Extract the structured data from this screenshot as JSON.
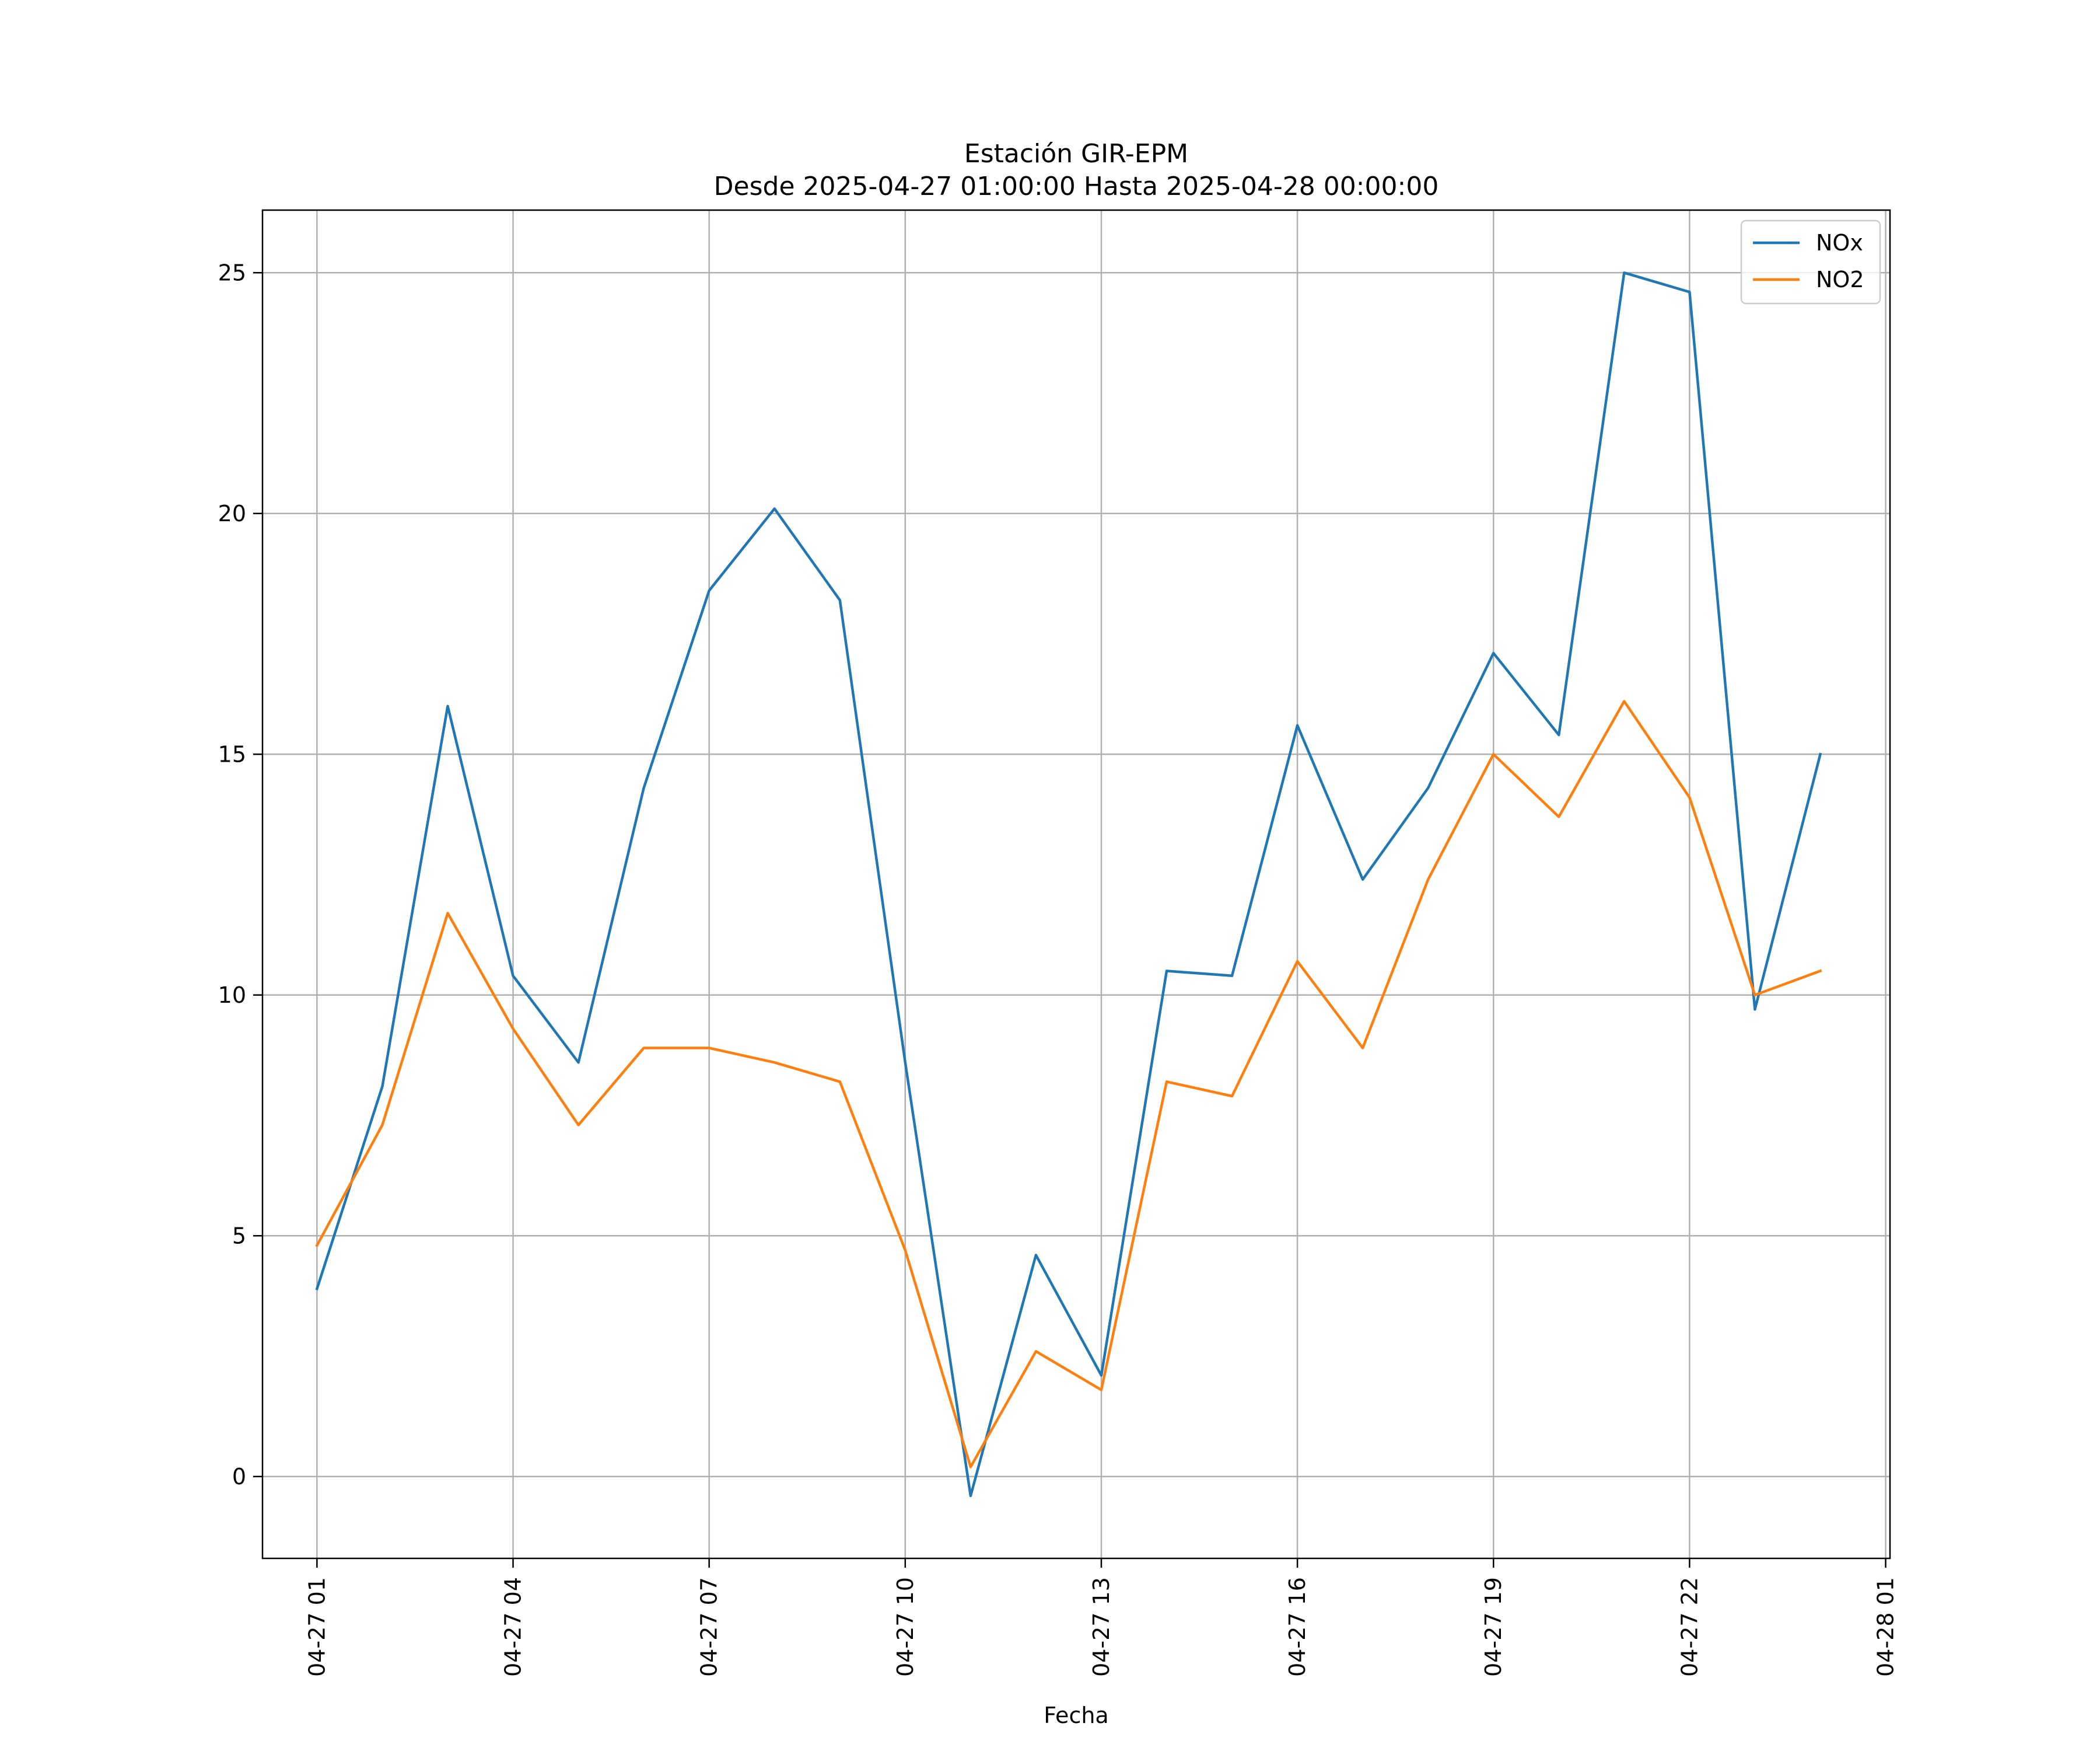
{
  "chart_data": {
    "type": "line",
    "title": "Estación GIR-EPM",
    "subtitle": "Desde 2025-04-27 01:00:00 Hasta 2025-04-28 00:00:00",
    "xlabel": "Fecha",
    "ylabel": "",
    "x": [
      "2025-04-27 01:00",
      "2025-04-27 02:00",
      "2025-04-27 03:00",
      "2025-04-27 04:00",
      "2025-04-27 05:00",
      "2025-04-27 06:00",
      "2025-04-27 07:00",
      "2025-04-27 08:00",
      "2025-04-27 09:00",
      "2025-04-27 10:00",
      "2025-04-27 11:00",
      "2025-04-27 12:00",
      "2025-04-27 13:00",
      "2025-04-27 14:00",
      "2025-04-27 15:00",
      "2025-04-27 16:00",
      "2025-04-27 17:00",
      "2025-04-27 18:00",
      "2025-04-27 19:00",
      "2025-04-27 20:00",
      "2025-04-27 21:00",
      "2025-04-27 22:00",
      "2025-04-27 23:00",
      "2025-04-28 00:00"
    ],
    "series": [
      {
        "name": "NOx",
        "color": "#1f77b4",
        "values": [
          3.9,
          8.1,
          16.0,
          10.4,
          8.6,
          14.3,
          18.4,
          20.1,
          18.2,
          8.6,
          -0.4,
          4.6,
          2.1,
          10.5,
          10.4,
          15.6,
          12.4,
          14.3,
          17.1,
          15.4,
          25.0,
          24.6,
          9.7,
          15.0
        ]
      },
      {
        "name": "NO2",
        "color": "#ff7f0e",
        "values": [
          4.8,
          7.3,
          11.7,
          9.3,
          7.3,
          8.9,
          8.9,
          8.6,
          8.2,
          4.7,
          0.2,
          2.6,
          1.8,
          8.2,
          7.9,
          10.7,
          8.9,
          12.4,
          15.0,
          13.7,
          16.1,
          14.1,
          10.0,
          10.5
        ]
      }
    ],
    "xticks": [
      "04-27 01",
      "04-27 04",
      "04-27 07",
      "04-27 10",
      "04-27 13",
      "04-27 16",
      "04-27 19",
      "04-27 22",
      "04-28 01"
    ],
    "xtick_values": [
      "2025-04-27 01:00",
      "2025-04-27 04:00",
      "2025-04-27 07:00",
      "2025-04-27 10:00",
      "2025-04-27 13:00",
      "2025-04-27 16:00",
      "2025-04-27 19:00",
      "2025-04-27 22:00",
      "2025-04-28 01:00"
    ],
    "yticks": [
      0,
      5,
      10,
      15,
      20,
      25
    ],
    "xlim": [
      "2025-04-27 00:10",
      "2025-04-28 01:04"
    ],
    "ylim": [
      -1.7,
      26.3
    ],
    "grid": true,
    "legend": "top-right"
  }
}
